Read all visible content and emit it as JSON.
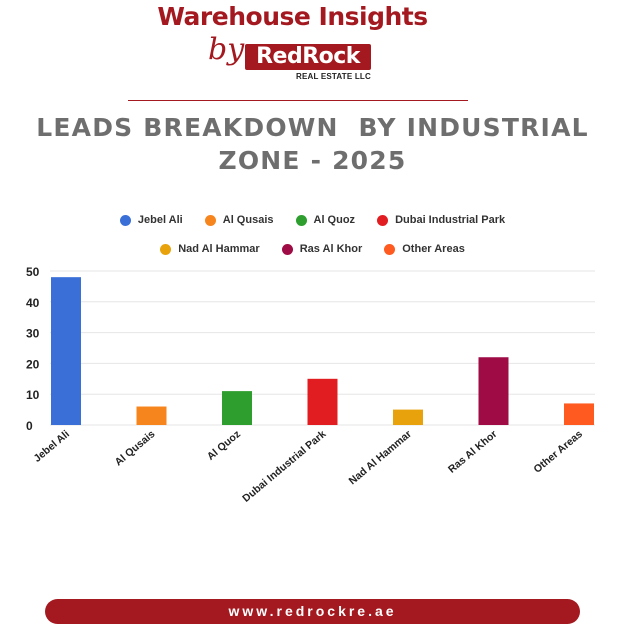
{
  "brand": {
    "title": "Warehouse Insights",
    "by": "by",
    "logo_text": "RedRock",
    "logo_subtext": "REAL ESTATE LLC"
  },
  "chart_data": {
    "type": "bar",
    "title": "LEADS BREAKDOWN  BY INDUSTRIAL ZONE - 2025",
    "categories": [
      "Jebel Ali",
      "Al Qusais",
      "Al Quoz",
      "Dubai Industrial Park",
      "Nad Al Hammar",
      "Ras Al Khor",
      "Other Areas"
    ],
    "values": [
      48,
      6,
      11,
      15,
      5,
      22,
      7
    ],
    "colors": [
      "#3a6fd8",
      "#f7851e",
      "#2e9e2e",
      "#e21d22",
      "#e8a30c",
      "#9e0b45",
      "#ff5a1f"
    ],
    "yticks": [
      0,
      10,
      20,
      30,
      40,
      50
    ],
    "ylim": [
      0,
      50
    ],
    "grid": true,
    "legend_position": "top-center",
    "xlabel": "",
    "ylabel": ""
  },
  "footer": {
    "url": "www.redrockre.ae"
  }
}
